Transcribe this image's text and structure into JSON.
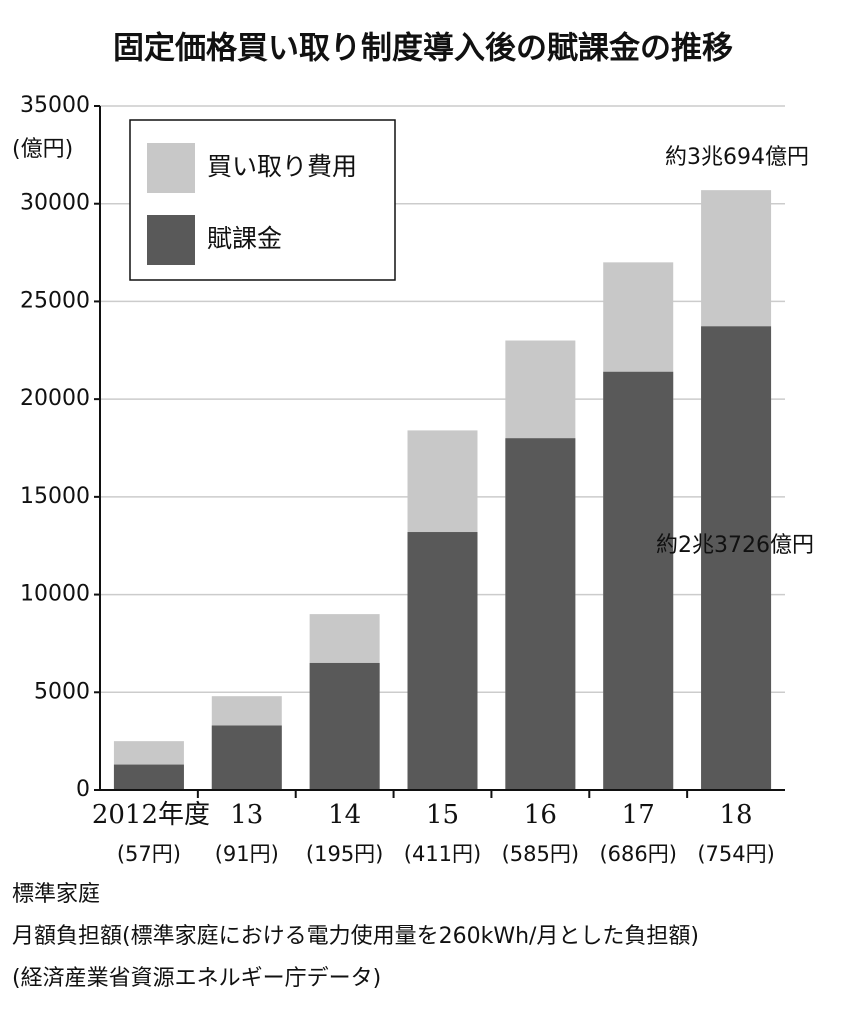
{
  "chart_data": {
    "type": "bar",
    "title": "固定価格買い取り制度導入後の賦課金の推移",
    "y_unit": "(億円)",
    "categories": [
      "2012年度",
      "13",
      "14",
      "15",
      "16",
      "17",
      "18"
    ],
    "category_notes": [
      "(57円)",
      "(91円)",
      "(195円)",
      "(411円)",
      "(585円)",
      "(686円)",
      "(754円)"
    ],
    "series": [
      {
        "name": "買い取り費用",
        "color": "#c8c8c8",
        "values": [
          2500,
          4800,
          9000,
          18400,
          23000,
          27000,
          30694
        ]
      },
      {
        "name": "賦課金",
        "color": "#595959",
        "values": [
          1300,
          3300,
          6500,
          13200,
          18000,
          21400,
          23726
        ]
      }
    ],
    "annotations": [
      "約3兆694億円",
      "約2兆3726億円"
    ],
    "ylim": [
      0,
      35000
    ],
    "yticks": [
      0,
      5000,
      10000,
      15000,
      20000,
      25000,
      30000,
      35000
    ],
    "grid": true,
    "legend": "upper left",
    "footnotes": [
      "標準家庭",
      "月額負担額(標準家庭における電力使用量を260kWh/月とした負担額)",
      "(経済産業省資源エネルギー庁データ)"
    ]
  }
}
